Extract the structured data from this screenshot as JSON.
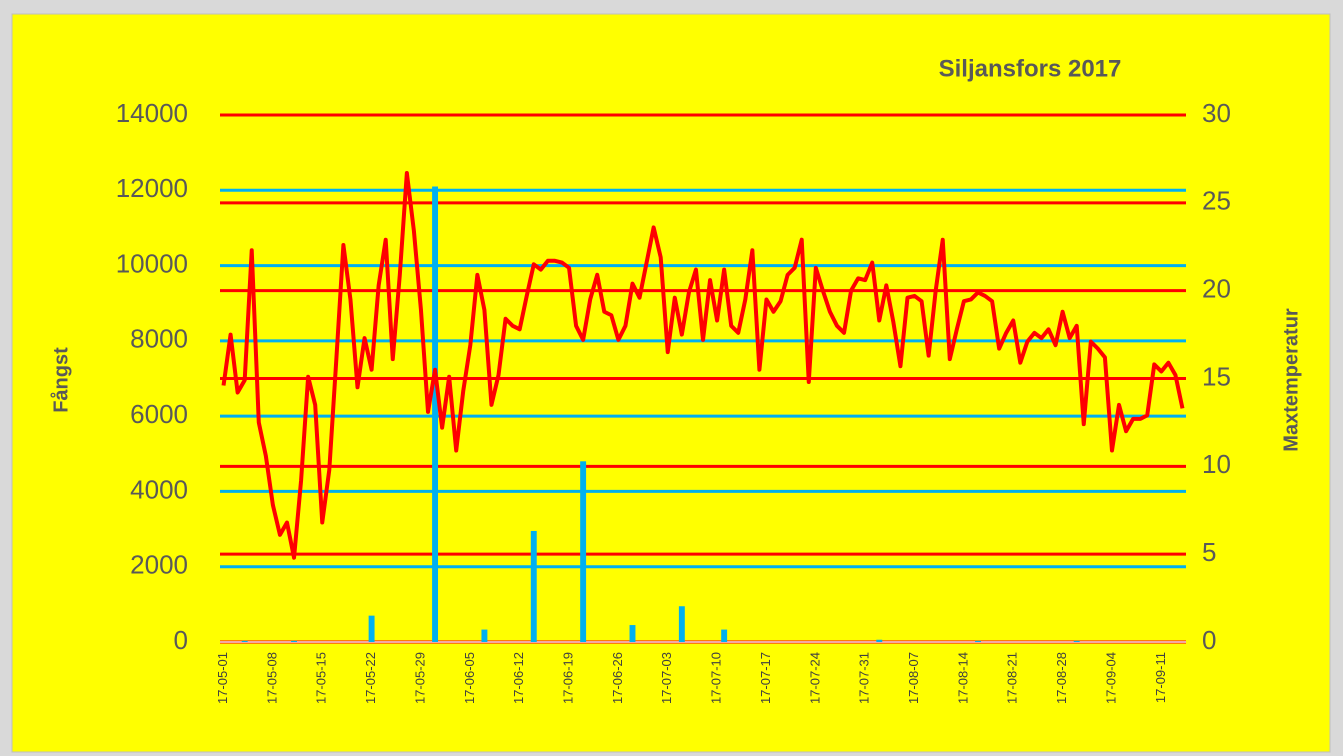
{
  "chart_data": {
    "type": "bar-line",
    "title": "Siljansfors 2017",
    "ylabel": "Fångst",
    "y2label": "Maxtemperatur",
    "categories": [
      "17-05-01",
      null,
      null,
      null,
      null,
      null,
      null,
      "17-05-08",
      null,
      null,
      null,
      null,
      null,
      null,
      "17-05-15",
      null,
      null,
      null,
      null,
      null,
      null,
      "17-05-22",
      null,
      null,
      null,
      null,
      null,
      null,
      "17-05-29",
      null,
      null,
      null,
      null,
      null,
      null,
      "17-06-05",
      null,
      null,
      null,
      null,
      null,
      null,
      "17-06-12",
      null,
      null,
      null,
      null,
      null,
      null,
      "17-06-19",
      null,
      null,
      null,
      null,
      null,
      null,
      "17-06-26",
      null,
      null,
      null,
      null,
      null,
      null,
      "17-07-03",
      null,
      null,
      null,
      null,
      null,
      null,
      "17-07-10",
      null,
      null,
      null,
      null,
      null,
      null,
      "17-07-17",
      null,
      null,
      null,
      null,
      null,
      null,
      "17-07-24",
      null,
      null,
      null,
      null,
      null,
      null,
      "17-07-31",
      null,
      null,
      null,
      null,
      null,
      null,
      "17-08-07",
      null,
      null,
      null,
      null,
      null,
      null,
      "17-08-14",
      null,
      null,
      null,
      null,
      null,
      null,
      "17-08-21",
      null,
      null,
      null,
      null,
      null,
      null,
      "17-08-28",
      null,
      null,
      null,
      null,
      null,
      null,
      "17-09-04",
      null,
      null,
      null,
      null,
      null,
      null,
      "17-09-11",
      null,
      null,
      null
    ],
    "series": [
      {
        "type": "bar",
        "color": "#00b0f0",
        "axis": "y",
        "values": [
          0,
          0,
          0,
          30,
          0,
          0,
          0,
          0,
          0,
          0,
          30,
          0,
          0,
          0,
          0,
          0,
          0,
          0,
          0,
          0,
          0,
          700,
          0,
          0,
          0,
          0,
          0,
          0,
          0,
          0,
          12100,
          0,
          0,
          0,
          0,
          0,
          0,
          330,
          0,
          0,
          0,
          0,
          0,
          0,
          2950,
          0,
          0,
          0,
          0,
          0,
          0,
          4800,
          0,
          0,
          0,
          0,
          0,
          0,
          450,
          0,
          0,
          0,
          0,
          0,
          0,
          950,
          0,
          0,
          0,
          0,
          0,
          330,
          0,
          0,
          0,
          0,
          0,
          0,
          0,
          0,
          0,
          0,
          0,
          0,
          0,
          0,
          0,
          0,
          0,
          0,
          0,
          0,
          0,
          60,
          0,
          0,
          0,
          0,
          0,
          0,
          0,
          0,
          0,
          0,
          0,
          0,
          0,
          30,
          0,
          0,
          0,
          0,
          0,
          0,
          0,
          0,
          0,
          0,
          0,
          0,
          0,
          30,
          0,
          0,
          0,
          0,
          0,
          0,
          0,
          0,
          0,
          0,
          0,
          0,
          0,
          0,
          0
        ]
      },
      {
        "type": "line",
        "color": "#ff0000",
        "axis": "y2",
        "values": [
          14.6,
          17.5,
          14.2,
          14.9,
          22.3,
          12.5,
          10.6,
          7.8,
          6.1,
          6.8,
          4.8,
          9.2,
          15.1,
          13.5,
          6.8,
          9.8,
          16.1,
          22.6,
          19.5,
          14.5,
          17.3,
          15.5,
          20.3,
          22.9,
          16.1,
          20.9,
          26.7,
          23.4,
          18.9,
          13.1,
          15.5,
          12.2,
          15.1,
          10.9,
          14.3,
          16.9,
          20.9,
          18.9,
          13.5,
          15.2,
          18.4,
          18.0,
          17.8,
          19.7,
          21.5,
          21.2,
          21.7,
          21.7,
          21.6,
          21.3,
          18.0,
          17.2,
          19.5,
          20.9,
          18.8,
          18.6,
          17.2,
          18.0,
          20.4,
          19.6,
          21.6,
          23.6,
          21.9,
          16.5,
          19.6,
          17.5,
          19.9,
          21.2,
          17.2,
          20.6,
          18.3,
          21.2,
          18.0,
          17.6,
          19.5,
          22.3,
          15.5,
          19.5,
          18.8,
          19.4,
          20.9,
          21.3,
          22.9,
          14.8,
          21.3,
          20.0,
          18.8,
          18.0,
          17.6,
          20.0,
          20.7,
          20.6,
          21.6,
          18.3,
          20.3,
          18.2,
          15.7,
          19.6,
          19.7,
          19.4,
          16.3,
          20.0,
          22.9,
          16.1,
          17.8,
          19.4,
          19.5,
          19.9,
          19.7,
          19.4,
          16.7,
          17.6,
          18.3,
          15.9,
          17.1,
          17.6,
          17.3,
          17.8,
          16.9,
          18.8,
          17.3,
          18.0,
          12.4,
          17.1,
          16.7,
          16.2,
          10.9,
          13.5,
          12.0,
          12.7,
          12.7,
          12.9,
          15.8,
          15.4,
          15.9,
          15.2,
          13.3
        ]
      }
    ],
    "ylim": [
      0,
      14000
    ],
    "yticks": [
      0,
      2000,
      4000,
      6000,
      8000,
      10000,
      12000,
      14000
    ],
    "y2lim": [
      0,
      30
    ],
    "y2ticks": [
      0,
      5,
      10,
      15,
      20,
      25,
      30
    ],
    "grid": true,
    "grid_colors": {
      "y": "#00b0f0",
      "y2": "#ff0000"
    }
  }
}
